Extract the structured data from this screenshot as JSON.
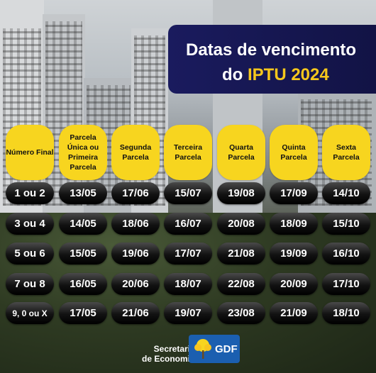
{
  "title": {
    "line1": "Datas de vencimento",
    "line2_prefix": "do",
    "line2_highlight": "IPTU 2024"
  },
  "headers": [
    "Número Final",
    "Parcela Única ou Primeira Parcela",
    "Segunda Parcela",
    "Terceira Parcela",
    "Quarta Parcela",
    "Quinta Parcela",
    "Sexta Parcela"
  ],
  "rows": [
    [
      "1 ou 2",
      "13/05",
      "17/06",
      "15/07",
      "19/08",
      "17/09",
      "14/10"
    ],
    [
      "3 ou 4",
      "14/05",
      "18/06",
      "16/07",
      "20/08",
      "18/09",
      "15/10"
    ],
    [
      "5 ou 6",
      "15/05",
      "19/06",
      "17/07",
      "21/08",
      "19/09",
      "16/10"
    ],
    [
      "7 ou 8",
      "16/05",
      "20/06",
      "18/07",
      "22/08",
      "20/09",
      "17/10"
    ],
    [
      "9, 0 ou X",
      "17/05",
      "21/06",
      "19/07",
      "23/08",
      "21/09",
      "18/10"
    ]
  ],
  "footer": {
    "line1": "Secretaria",
    "line2": "de Economia",
    "logo_text": "GDF"
  },
  "colors": {
    "title_bg": "#1a1b5e",
    "highlight": "#f6c71c",
    "header_bg": "#f7d51f",
    "cell_bg": "#000000",
    "logo_bg": "#1b5fb0"
  }
}
